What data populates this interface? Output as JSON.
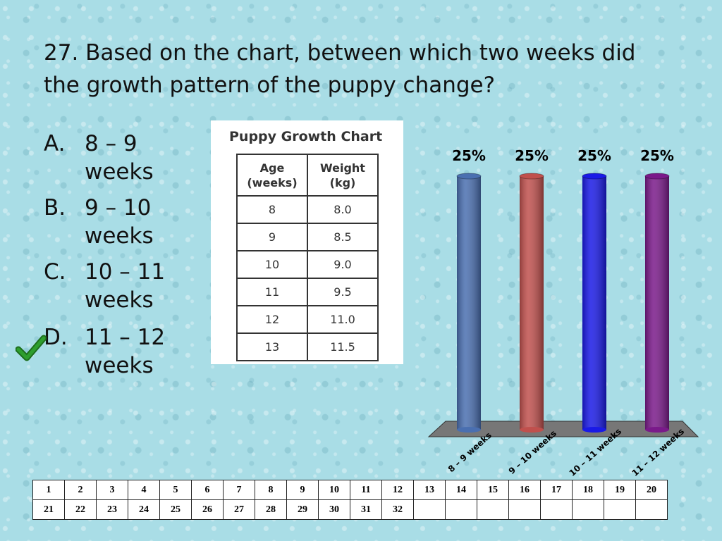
{
  "question": "27. Based on the chart, between which two weeks did the growth pattern of the puppy change?",
  "choices": [
    {
      "letter": "A.",
      "text": "8 – 9 weeks"
    },
    {
      "letter": "B.",
      "text": "9 – 10 weeks"
    },
    {
      "letter": "C.",
      "text": "10 – 11 weeks"
    },
    {
      "letter": "D.",
      "text": "11 – 12 weeks"
    }
  ],
  "correct_choice": "D",
  "check_icon": "checkmark-icon",
  "check_color": "#2e9e2e",
  "table": {
    "title": "Puppy Growth Chart",
    "headers": [
      "Age (weeks)",
      "Weight (kg)"
    ],
    "rows": [
      [
        "8",
        "8.0"
      ],
      [
        "9",
        "8.5"
      ],
      [
        "10",
        "9.0"
      ],
      [
        "11",
        "9.5"
      ],
      [
        "12",
        "11.0"
      ],
      [
        "13",
        "11.5"
      ]
    ]
  },
  "chart_data": {
    "type": "bar",
    "categories": [
      "8 – 9 weeks",
      "9 – 10 weeks",
      "10 – 11 weeks",
      "11 – 12 weeks"
    ],
    "values": [
      25,
      25,
      25,
      25
    ],
    "data_labels": [
      "25%",
      "25%",
      "25%",
      "25%"
    ],
    "colors": [
      "#4a6fb0",
      "#c0504d",
      "#1a1ae6",
      "#7a1a8a"
    ],
    "ylim": [
      0,
      25
    ],
    "title": "",
    "xlabel": "",
    "ylabel": ""
  },
  "answer_grid": {
    "row1": [
      "1",
      "2",
      "3",
      "4",
      "5",
      "6",
      "7",
      "8",
      "9",
      "10",
      "11",
      "12",
      "13",
      "14",
      "15",
      "16",
      "17",
      "18",
      "19",
      "20"
    ],
    "row2": [
      "21",
      "22",
      "23",
      "24",
      "25",
      "26",
      "27",
      "28",
      "29",
      "30",
      "31",
      "32",
      "",
      "",
      "",
      "",
      "",
      "",
      "",
      ""
    ]
  }
}
